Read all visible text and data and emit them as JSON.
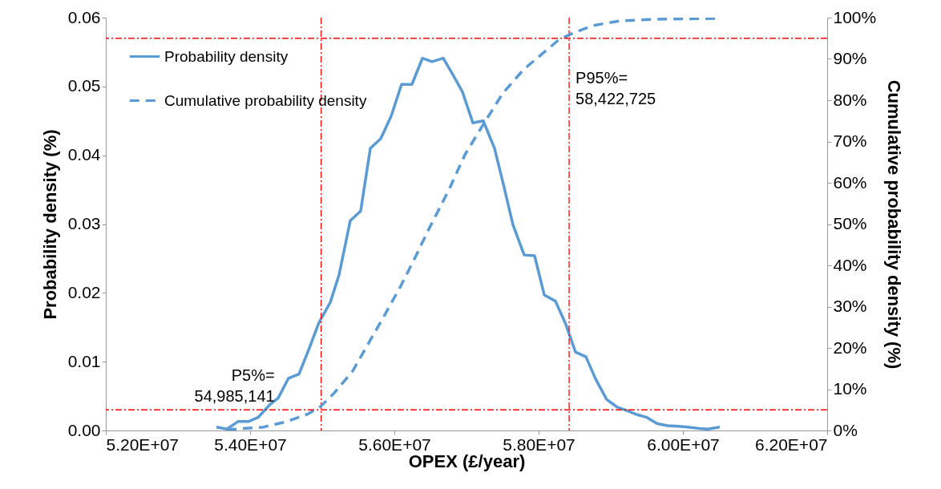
{
  "chart_data": {
    "type": "line",
    "xlabel": "OPEX (£/year)",
    "ylabel": "Probability density (%)",
    "y2label": "Cumulative probability density (%)",
    "xlim": [
      52000000,
      62000000
    ],
    "xticks": [
      {
        "value": 52000000,
        "label": "5.20E+07"
      },
      {
        "value": 54000000,
        "label": "5.40E+07"
      },
      {
        "value": 56000000,
        "label": "5.60E+07"
      },
      {
        "value": 58000000,
        "label": "5.80E+07"
      },
      {
        "value": 60000000,
        "label": "6.00E+07"
      },
      {
        "value": 62000000,
        "label": "6.20E+07"
      }
    ],
    "ylim": [
      0,
      0.06
    ],
    "yticks": [
      {
        "value": 0,
        "label": "0.00"
      },
      0.01,
      0.02,
      0.03,
      0.04,
      0.05,
      0.06
    ],
    "y2lim": [
      0,
      100
    ],
    "y2ticks": [
      {
        "value": 0,
        "label": "0%"
      },
      {
        "value": 10,
        "label": "10%"
      },
      {
        "value": 20,
        "label": "20%"
      },
      {
        "value": 30,
        "label": "30%"
      },
      {
        "value": 40,
        "label": "40%"
      },
      {
        "value": 50,
        "label": "50%"
      },
      {
        "value": 60,
        "label": "60%"
      },
      {
        "value": 70,
        "label": "70%"
      },
      {
        "value": 80,
        "label": "80%"
      },
      {
        "value": 90,
        "label": "90%"
      },
      {
        "value": 100,
        "label": "100%"
      }
    ],
    "grid": false,
    "legend": "top left",
    "marker": "none",
    "series": [
      {
        "name": "Probability density",
        "color": "#5b9bd5",
        "line_style": "solid",
        "x": [
          53533000,
          53678000,
          53833000,
          53978000,
          54111000,
          54278000,
          54389000,
          54533000,
          54678000,
          54811000,
          54956000,
          55111000,
          55233000,
          55389000,
          55533000,
          55667000,
          55811000,
          55956000,
          56100000,
          56244000,
          56389000,
          56522000,
          56678000,
          56811000,
          56944000,
          57089000,
          57233000,
          57389000,
          57511000,
          57644000,
          57800000,
          57944000,
          58078000,
          58233000,
          58378000,
          58511000,
          58656000,
          58789000,
          58944000,
          59089000,
          59222000,
          59367000,
          59500000,
          59644000,
          59789000,
          59933000,
          60067000,
          60222000,
          60344000,
          60511000
        ],
        "values": [
          0.0005,
          0.0002,
          0.0013,
          0.0013,
          0.0019,
          0.0038,
          0.0047,
          0.0076,
          0.0082,
          0.0117,
          0.0157,
          0.0186,
          0.0226,
          0.0305,
          0.0319,
          0.041,
          0.0424,
          0.0457,
          0.0503,
          0.0503,
          0.0541,
          0.0536,
          0.0541,
          0.0517,
          0.0492,
          0.0447,
          0.045,
          0.041,
          0.0358,
          0.0299,
          0.0255,
          0.0254,
          0.0197,
          0.0188,
          0.0154,
          0.0114,
          0.0107,
          0.0075,
          0.0045,
          0.0034,
          0.0029,
          0.0023,
          0.0019,
          0.001,
          0.0007,
          0.0006,
          0.0005,
          0.0003,
          0.0002,
          0.0005
        ]
      },
      {
        "name": "Cumulative probability density",
        "color": "#5b9bd5",
        "line_style": "dashed",
        "axis": "y2",
        "x": [
          53678000,
          54178000,
          54500000,
          54789000,
          54978000,
          55167000,
          55422000,
          55644000,
          55867000,
          56089000,
          56311000,
          56456000,
          56756000,
          56978000,
          57200000,
          57500000,
          57789000,
          58278000,
          58456000,
          58756000,
          59122000,
          59611000,
          60478000
        ],
        "values": [
          0.2,
          0.8,
          2.1,
          3.9,
          5.8,
          9.1,
          14.4,
          21.2,
          28,
          35,
          42.7,
          48,
          58.3,
          66.8,
          73.2,
          81.6,
          87.4,
          94.6,
          96.1,
          98.1,
          99.2,
          99.6,
          99.8
        ]
      }
    ],
    "ref_lines": [
      {
        "axis": "x",
        "value": 54985141,
        "color": "#ff0000",
        "line_style": "dashed"
      },
      {
        "axis": "x",
        "value": 58422725,
        "color": "#ff0000",
        "line_style": "dashed"
      },
      {
        "axis": "y2",
        "value": 5,
        "color": "#ff0000",
        "line_style": "dashed"
      },
      {
        "axis": "y2",
        "value": 95,
        "color": "#ff0000",
        "line_style": "dashed"
      }
    ],
    "annotations": [
      "P5%=\n54,985,141",
      "P95%=\n58,422,725"
    ]
  }
}
